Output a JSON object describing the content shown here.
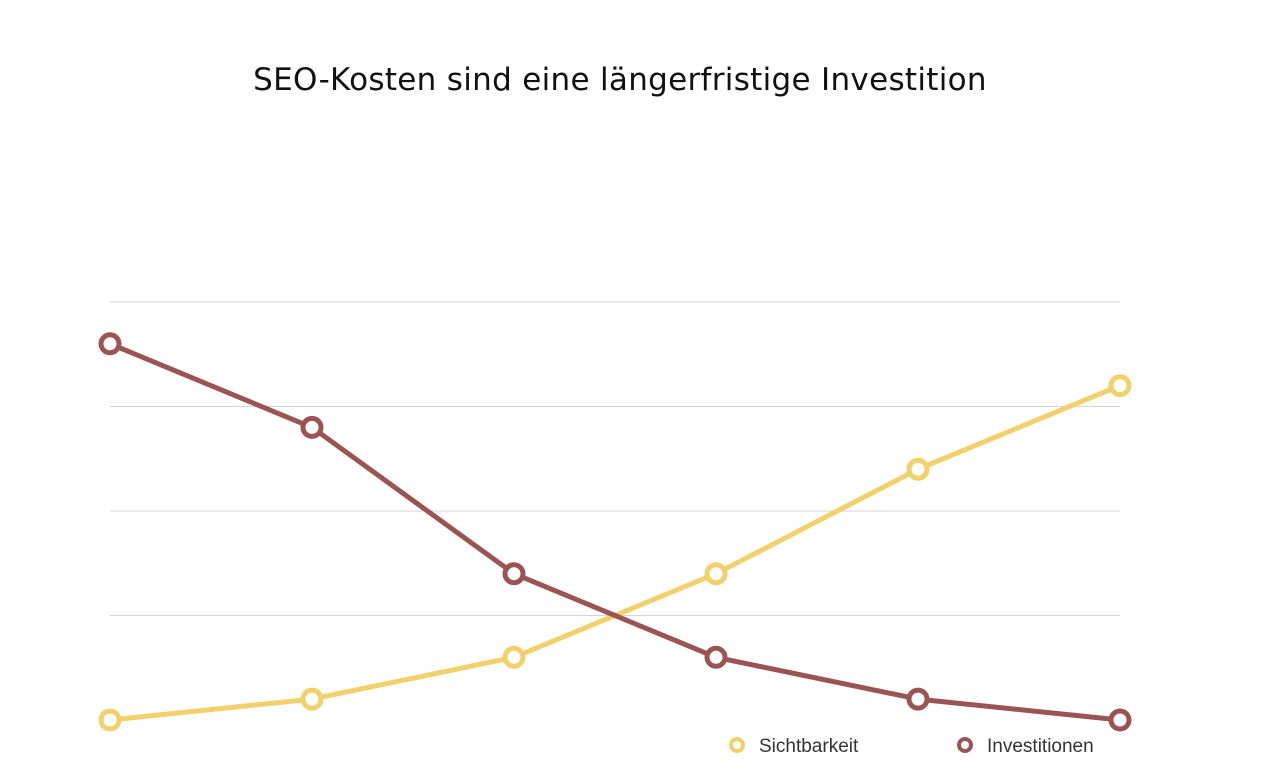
{
  "chart_data": {
    "type": "line",
    "title": "SEO-Kosten sind eine längerfristige Investition",
    "xlabel": "",
    "ylabel": "",
    "x": [
      1,
      2,
      3,
      4,
      5,
      6
    ],
    "ylim": [
      0,
      4
    ],
    "grid": true,
    "legend_position": "bottom-right",
    "series": [
      {
        "name": "Sichtbarkeit",
        "color": "#f2d06b",
        "values": [
          0.0,
          0.2,
          0.6,
          1.4,
          2.4,
          3.2
        ]
      },
      {
        "name": "Investitionen",
        "color": "#9b5454",
        "values": [
          3.6,
          2.8,
          1.4,
          0.6,
          0.2,
          0.0
        ]
      }
    ]
  }
}
